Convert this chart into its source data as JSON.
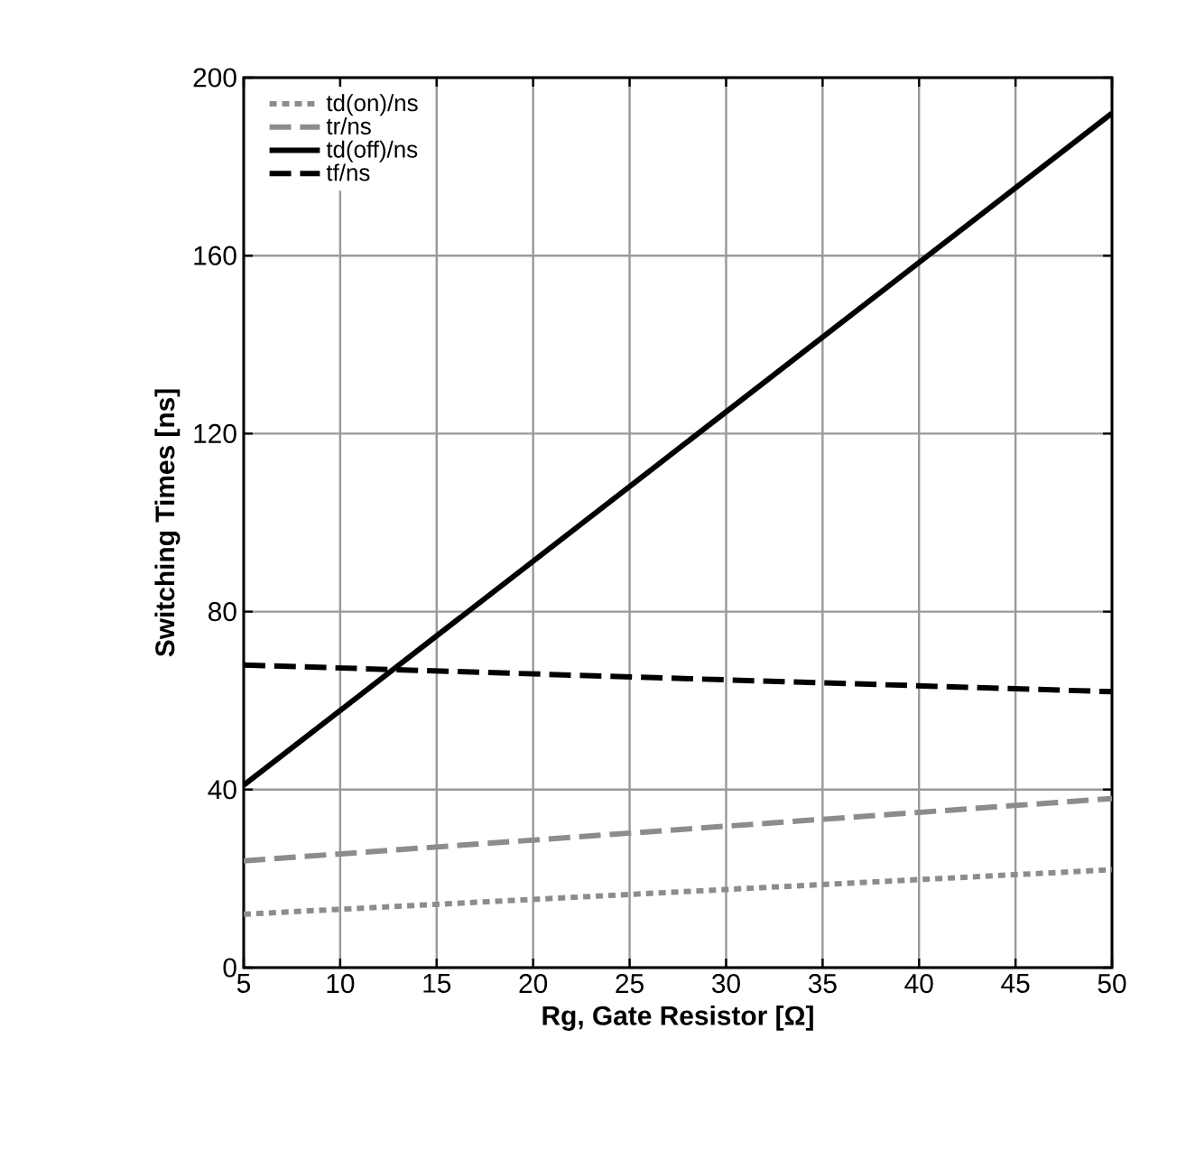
{
  "chart_data": {
    "type": "line",
    "xlabel": "Rg, Gate Resistor [Ω]",
    "ylabel": "Switching Times [ns]",
    "x": [
      5,
      50
    ],
    "series": [
      {
        "name": "td(on)/ns",
        "color": "#8c8c8c",
        "values": [
          12,
          22
        ],
        "line_style": "dotted"
      },
      {
        "name": "tr/ns",
        "color": "#8c8c8c",
        "values": [
          24,
          38
        ],
        "line_style": "dashed"
      },
      {
        "name": "td(off)/ns",
        "color": "#000000",
        "values": [
          41,
          192
        ],
        "line_style": "solid"
      },
      {
        "name": "tf/ns",
        "color": "#000000",
        "values": [
          68,
          62
        ],
        "line_style": "dashed"
      }
    ],
    "xlim": [
      5,
      50
    ],
    "xticks": [
      5,
      10,
      15,
      20,
      25,
      30,
      35,
      40,
      45,
      50
    ],
    "ylim": [
      0,
      200
    ],
    "yticks": [
      0,
      40,
      80,
      120,
      160,
      200
    ],
    "grid": true,
    "legend": "top left"
  }
}
